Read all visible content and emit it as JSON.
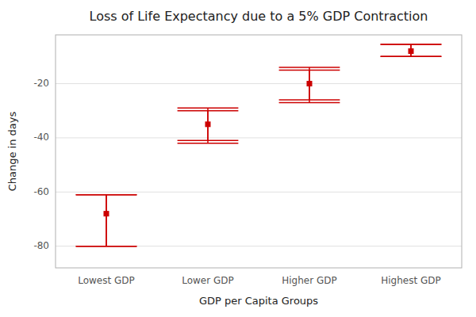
{
  "chart_data": {
    "type": "errorbar",
    "title": "Loss of Life Expectancy due to a 5% GDP Contraction",
    "x_label": "GDP per Capita Groups",
    "y_label": "Change in days",
    "categories": [
      "Lowest GDP",
      "Lower GDP",
      "Higher GDP",
      "Highest GDP"
    ],
    "values": [
      -68,
      -35,
      -20,
      -8
    ],
    "ci1_upper": [
      -61,
      -29,
      -14,
      -5.5
    ],
    "ci1_lower": [
      -80,
      -42,
      -27,
      -10
    ],
    "ci2_upper": [
      -61,
      -30,
      -15,
      -5.5
    ],
    "ci2_lower": [
      -80,
      -41,
      -26,
      -10
    ],
    "color": "#cc0000",
    "ylim": [
      -88,
      -2
    ],
    "yticks": [
      -80,
      -60,
      -40,
      -20
    ],
    "grid": true
  }
}
